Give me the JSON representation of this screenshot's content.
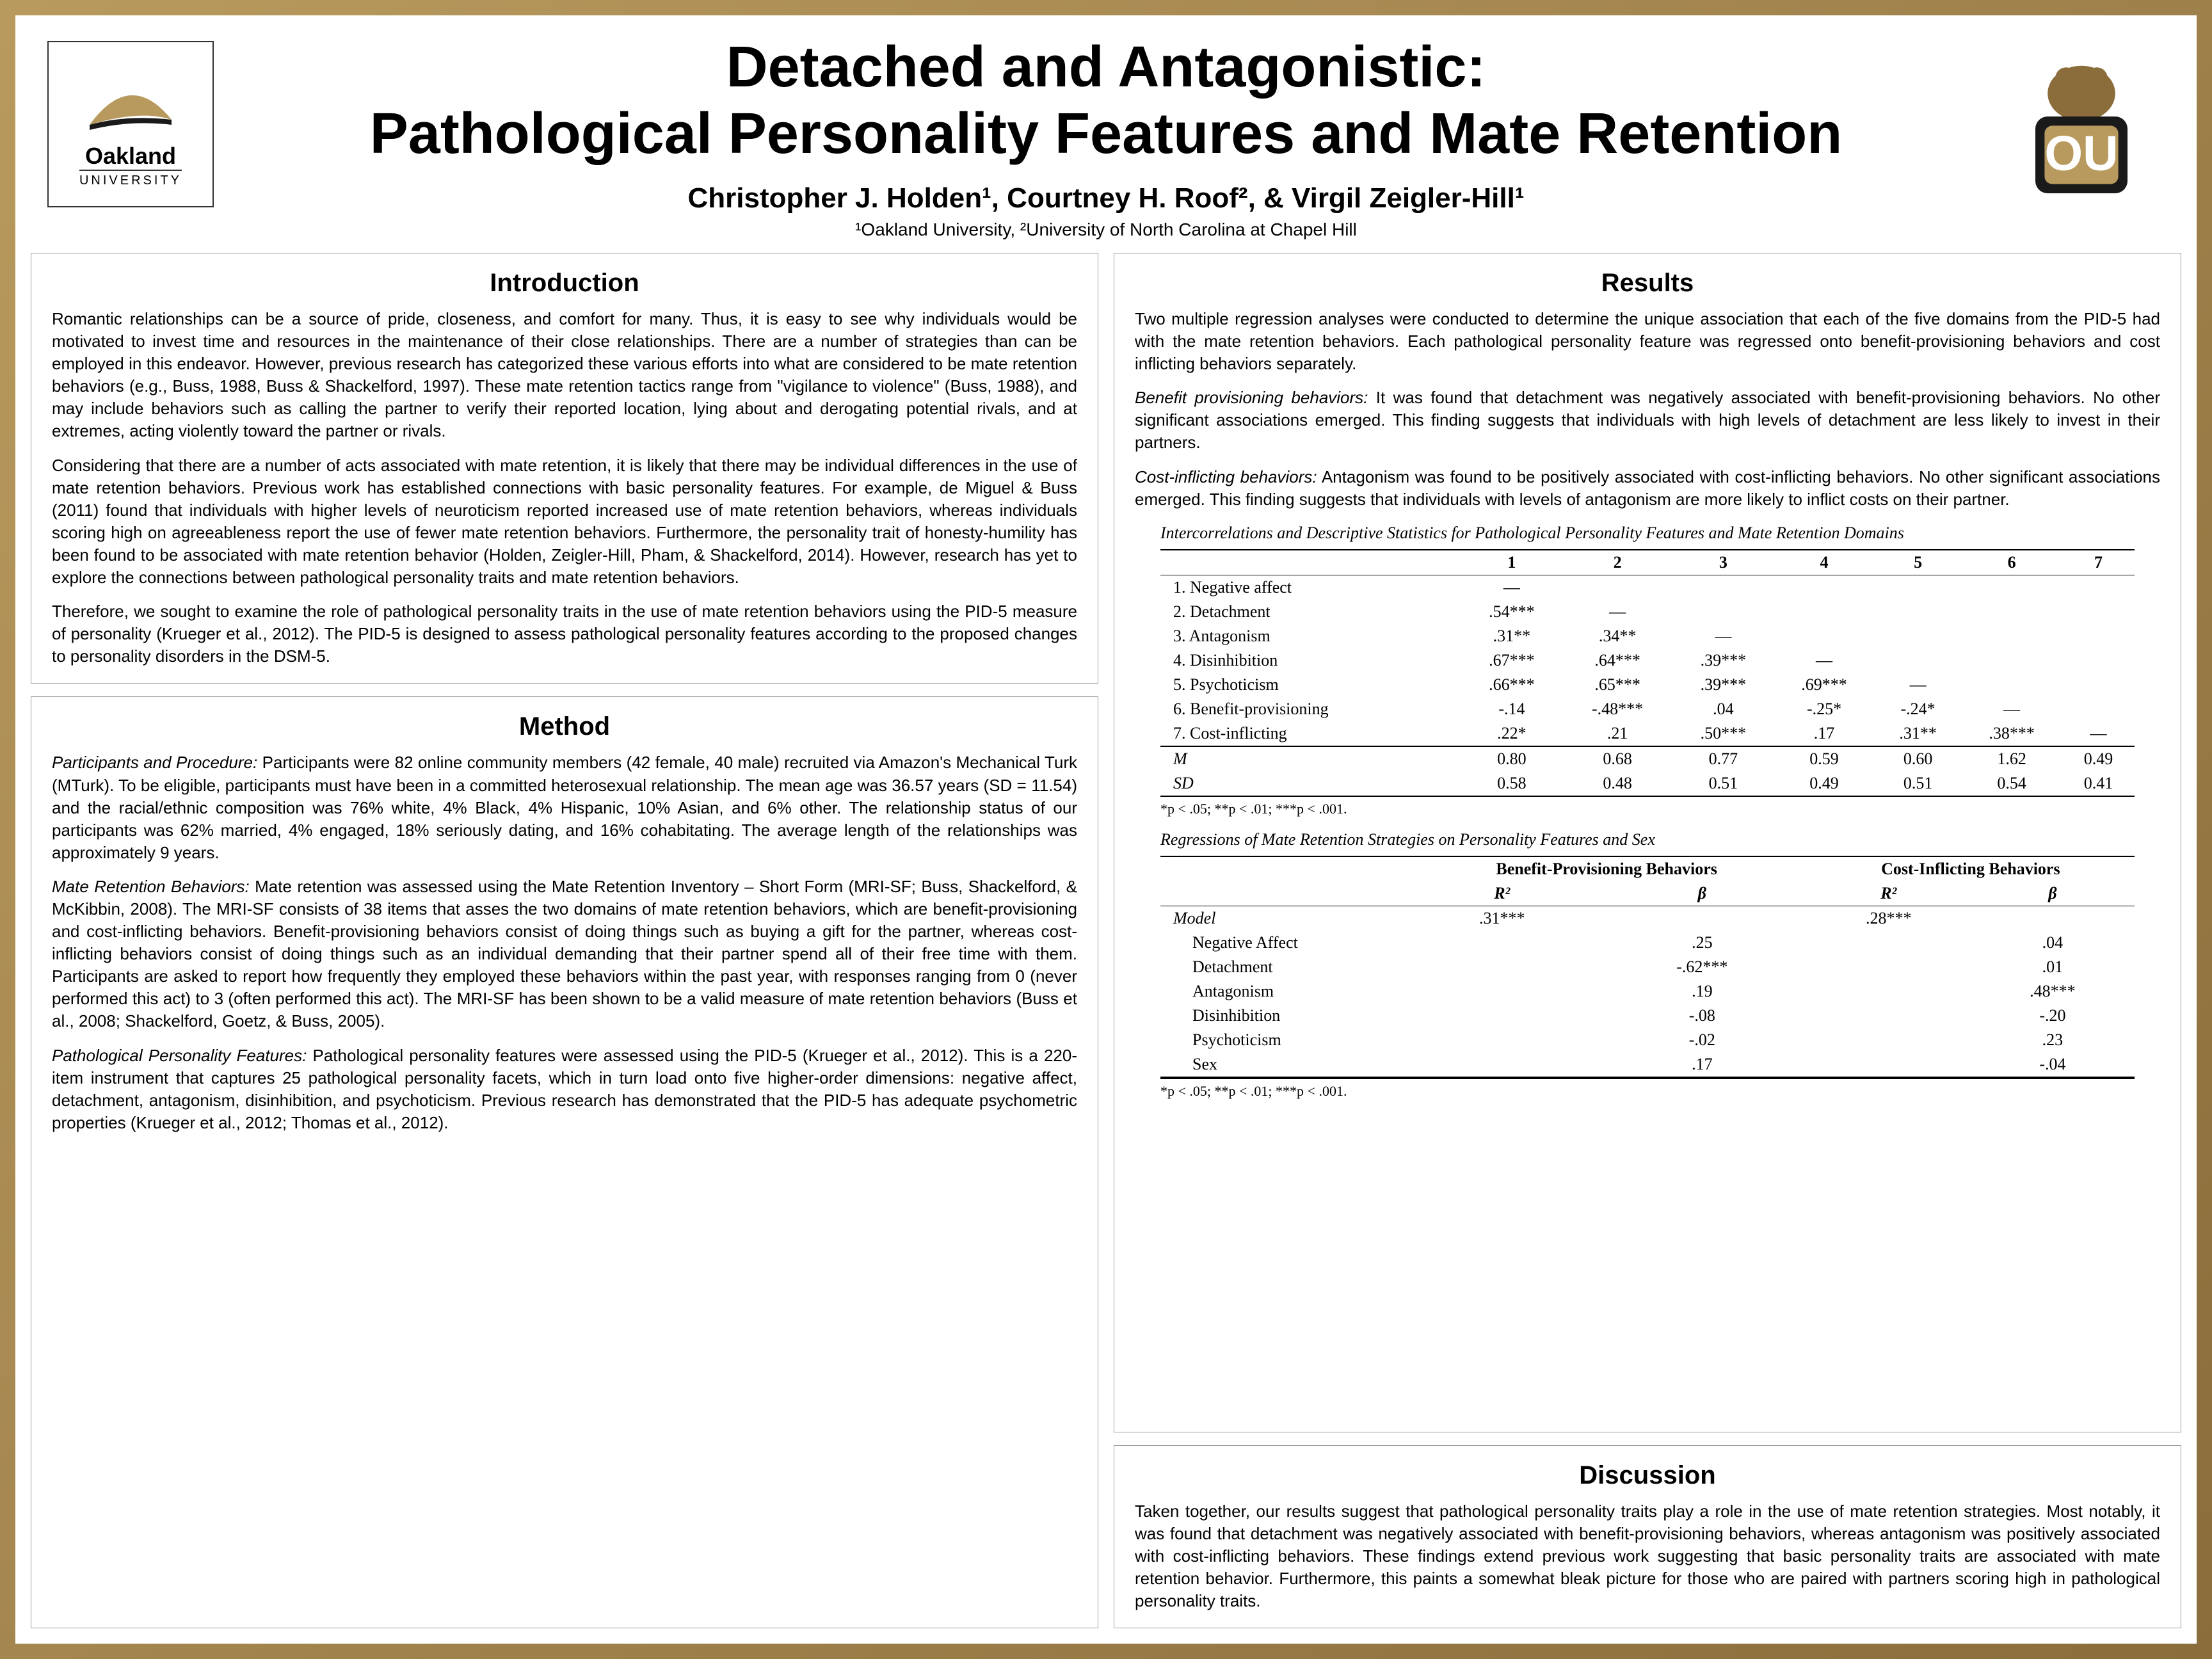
{
  "header": {
    "title_line1": "Detached and Antagonistic:",
    "title_line2": "Pathological Personality Features and Mate Retention",
    "authors": "Christopher J. Holden¹, Courtney H. Roof², & Virgil Zeigler-Hill¹",
    "affiliations": "¹Oakland University, ²University of North Carolina at Chapel Hill",
    "logo_left_text": "Oakland",
    "logo_left_sub": "UNIVERSITY",
    "logo_colors": {
      "gold": "#b89a5e",
      "black": "#1a1a1a"
    }
  },
  "intro": {
    "title": "Introduction",
    "p1": "Romantic relationships can be a source of pride, closeness, and comfort for many. Thus, it is easy to see why individuals would be motivated to invest time and resources in the maintenance of their close relationships. There are a number of strategies than can be employed in this endeavor. However, previous research has categorized these various efforts into what are considered to be mate retention behaviors (e.g., Buss, 1988, Buss & Shackelford, 1997). These mate retention tactics range from \"vigilance to violence\" (Buss, 1988), and may include behaviors such as calling the partner to verify their reported location, lying about and derogating potential rivals, and at extremes, acting violently toward the partner or rivals.",
    "p2": "Considering that there are a number of acts associated with mate retention, it is likely that there may be individual differences in the use of mate retention behaviors. Previous work has established connections with basic personality features. For example, de Miguel & Buss (2011) found that individuals with higher levels of neuroticism reported increased use of mate retention behaviors, whereas individuals scoring high on agreeableness report the use of fewer mate retention behaviors. Furthermore, the personality trait of honesty-humility has been found to be associated with mate retention behavior (Holden, Zeigler-Hill, Pham, & Shackelford, 2014). However, research has yet to explore the connections between pathological personality traits and mate retention behaviors.",
    "p3": "Therefore, we sought to examine the role of pathological personality traits in the use of mate retention behaviors using the PID-5 measure of personality (Krueger et al., 2012). The PID-5 is designed to assess pathological personality features according to the proposed changes to personality disorders in the DSM-5."
  },
  "method": {
    "title": "Method",
    "p1_label": "Participants and Procedure:",
    "p1": " Participants were 82 online community members (42 female, 40 male) recruited via Amazon's Mechanical Turk (MTurk). To be eligible, participants must have been in a committed heterosexual relationship. The mean age was 36.57 years (SD = 11.54) and the racial/ethnic composition was 76% white, 4% Black, 4% Hispanic, 10% Asian, and 6% other. The relationship status of our participants was 62% married, 4% engaged, 18% seriously dating, and 16% cohabitating. The average length of the relationships was approximately 9 years.",
    "p2_label": "Mate Retention Behaviors:",
    "p2": " Mate retention was assessed using the Mate Retention Inventory – Short Form (MRI-SF; Buss, Shackelford, & McKibbin, 2008). The MRI-SF consists of 38 items that asses the two domains of mate retention behaviors, which are benefit-provisioning and cost-inflicting behaviors. Benefit-provisioning behaviors consist of doing things such as buying a gift for the partner, whereas cost-inflicting behaviors consist of doing things such as an individual demanding that their partner spend all of their free time with them. Participants are asked to report how frequently they employed these behaviors within the past year, with responses ranging from 0 (never performed this act) to 3 (often performed this act). The MRI-SF has been shown to be a valid measure of mate retention behaviors (Buss et al., 2008; Shackelford, Goetz, & Buss, 2005).",
    "p3_label": "Pathological Personality Features:",
    "p3": " Pathological personality features were assessed using the PID-5 (Krueger et al., 2012). This is a 220-item instrument that captures 25 pathological personality facets, which in turn load onto five higher-order dimensions: negative affect, detachment, antagonism, disinhibition, and psychoticism. Previous research has demonstrated that the PID-5 has adequate psychometric properties (Krueger et al., 2012; Thomas et al., 2012)."
  },
  "results": {
    "title": "Results",
    "p1": "Two multiple regression analyses were conducted to determine the unique association that each of the five domains from the PID-5 had with the mate retention behaviors. Each pathological personality feature was regressed onto benefit-provisioning behaviors and cost inflicting behaviors separately.",
    "p2_label": "Benefit provisioning behaviors:",
    "p2": " It was found that detachment was negatively associated with benefit-provisioning behaviors. No other significant associations emerged. This finding suggests that individuals with high levels of detachment are less likely to invest in their partners.",
    "p3_label": "Cost-inflicting behaviors:",
    "p3": " Antagonism was found to be positively associated with cost-inflicting behaviors. No other significant associations emerged. This finding suggests that individuals with levels of antagonism are more likely to inflict costs on their partner."
  },
  "table1": {
    "caption": "Intercorrelations and Descriptive Statistics for Pathological Personality Features and Mate Retention Domains",
    "cols": [
      "1",
      "2",
      "3",
      "4",
      "5",
      "6",
      "7"
    ],
    "rows": [
      {
        "label": "1. Negative affect",
        "cells": [
          "—",
          "",
          "",
          "",
          "",
          "",
          ""
        ]
      },
      {
        "label": "2. Detachment",
        "cells": [
          ".54***",
          "—",
          "",
          "",
          "",
          "",
          ""
        ]
      },
      {
        "label": "3. Antagonism",
        "cells": [
          ".31**",
          ".34**",
          "—",
          "",
          "",
          "",
          ""
        ]
      },
      {
        "label": "4. Disinhibition",
        "cells": [
          ".67***",
          ".64***",
          ".39***",
          "—",
          "",
          "",
          ""
        ]
      },
      {
        "label": "5. Psychoticism",
        "cells": [
          ".66***",
          ".65***",
          ".39***",
          ".69***",
          "—",
          "",
          ""
        ]
      },
      {
        "label": "6. Benefit-provisioning",
        "cells": [
          "-.14",
          "-.48***",
          ".04",
          "-.25*",
          "-.24*",
          "—",
          ""
        ]
      },
      {
        "label": "7. Cost-inflicting",
        "cells": [
          ".22*",
          ".21",
          ".50***",
          ".17",
          ".31**",
          ".38***",
          "—"
        ]
      }
    ],
    "m_row": {
      "label": "M",
      "cells": [
        "0.80",
        "0.68",
        "0.77",
        "0.59",
        "0.60",
        "1.62",
        "0.49"
      ]
    },
    "sd_row": {
      "label": "SD",
      "cells": [
        "0.58",
        "0.48",
        "0.51",
        "0.49",
        "0.51",
        "0.54",
        "0.41"
      ]
    },
    "note": "*p < .05; **p < .01; ***p < .001."
  },
  "table2": {
    "caption": "Regressions of Mate Retention Strategies on Personality Features and Sex",
    "group_headers": [
      "Benefit-Provisioning Behaviors",
      "Cost-Inflicting Behaviors"
    ],
    "sub_headers": [
      "R²",
      "β",
      "R²",
      "β"
    ],
    "model_row": {
      "label": "Model",
      "cells": [
        ".31***",
        "",
        ".28***",
        ""
      ]
    },
    "rows": [
      {
        "label": "Negative Affect",
        "cells": [
          "",
          ".25",
          "",
          ".04"
        ]
      },
      {
        "label": "Detachment",
        "cells": [
          "",
          "-.62***",
          "",
          ".01"
        ]
      },
      {
        "label": "Antagonism",
        "cells": [
          "",
          ".19",
          "",
          ".48***"
        ]
      },
      {
        "label": "Disinhibition",
        "cells": [
          "",
          "-.08",
          "",
          "-.20"
        ]
      },
      {
        "label": "Psychoticism",
        "cells": [
          "",
          "-.02",
          "",
          ".23"
        ]
      },
      {
        "label": "Sex",
        "cells": [
          "",
          ".17",
          "",
          "-.04"
        ]
      }
    ],
    "note": "*p < .05; **p < .01; ***p < .001."
  },
  "discussion": {
    "title": "Discussion",
    "p1": "Taken together, our results suggest that pathological personality traits play a role in the use of mate retention strategies. Most notably, it was found that detachment was negatively associated with benefit-provisioning behaviors, whereas antagonism was positively associated with cost-inflicting behaviors. These findings extend previous work suggesting that basic personality traits are associated with mate retention behavior. Furthermore, this paints a somewhat bleak picture for those who are paired with partners scoring high in pathological personality traits."
  }
}
